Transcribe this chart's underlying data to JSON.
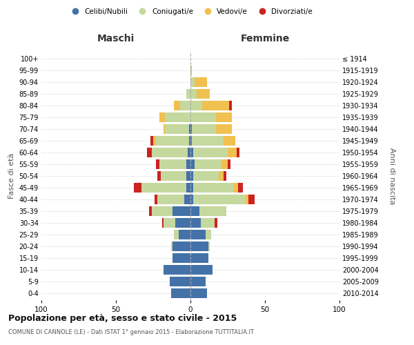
{
  "age_groups": [
    "0-4",
    "5-9",
    "10-14",
    "15-19",
    "20-24",
    "25-29",
    "30-34",
    "35-39",
    "40-44",
    "45-49",
    "50-54",
    "55-59",
    "60-64",
    "65-69",
    "70-74",
    "75-79",
    "80-84",
    "85-89",
    "90-94",
    "95-99",
    "100+"
  ],
  "birth_years": [
    "2010-2014",
    "2005-2009",
    "2000-2004",
    "1995-1999",
    "1990-1994",
    "1985-1989",
    "1980-1984",
    "1975-1979",
    "1970-1974",
    "1965-1969",
    "1960-1964",
    "1955-1959",
    "1950-1954",
    "1945-1949",
    "1940-1944",
    "1935-1939",
    "1930-1934",
    "1925-1929",
    "1920-1924",
    "1915-1919",
    "≤ 1914"
  ],
  "male": {
    "celibi": [
      13,
      14,
      18,
      12,
      12,
      8,
      10,
      12,
      4,
      3,
      3,
      3,
      2,
      1,
      1,
      0,
      0,
      0,
      0,
      0,
      0
    ],
    "coniugati": [
      0,
      0,
      0,
      0,
      1,
      3,
      8,
      14,
      18,
      30,
      17,
      18,
      24,
      22,
      16,
      17,
      7,
      3,
      0,
      0,
      0
    ],
    "vedovi": [
      0,
      0,
      0,
      0,
      0,
      0,
      0,
      0,
      0,
      0,
      0,
      0,
      0,
      2,
      1,
      4,
      4,
      0,
      0,
      0,
      0
    ],
    "divorziati": [
      0,
      0,
      0,
      0,
      0,
      0,
      1,
      2,
      2,
      5,
      2,
      2,
      3,
      2,
      0,
      0,
      0,
      0,
      0,
      0,
      0
    ]
  },
  "female": {
    "nubili": [
      11,
      10,
      15,
      12,
      12,
      10,
      7,
      6,
      2,
      2,
      2,
      3,
      2,
      1,
      1,
      0,
      0,
      0,
      0,
      0,
      0
    ],
    "coniugate": [
      0,
      0,
      0,
      0,
      1,
      4,
      9,
      18,
      35,
      27,
      17,
      18,
      23,
      21,
      16,
      17,
      8,
      4,
      3,
      0,
      0
    ],
    "vedove": [
      0,
      0,
      0,
      0,
      0,
      0,
      0,
      0,
      2,
      3,
      3,
      4,
      6,
      8,
      11,
      11,
      18,
      9,
      8,
      1,
      0
    ],
    "divorziate": [
      0,
      0,
      0,
      0,
      0,
      0,
      2,
      0,
      4,
      3,
      2,
      2,
      2,
      0,
      0,
      0,
      2,
      0,
      0,
      0,
      0
    ]
  },
  "colors": {
    "celibi": "#4472a8",
    "coniugati": "#c5d89e",
    "vedovi": "#f0c050",
    "divorziati": "#cc2222"
  },
  "xlim": 100,
  "title": "Popolazione per età, sesso e stato civile - 2015",
  "subtitle": "COMUNE DI CANNOLE (LE) - Dati ISTAT 1° gennaio 2015 - Elaborazione TUTTITALIA.IT",
  "xlabel_left": "Maschi",
  "xlabel_right": "Femmine",
  "ylabel_left": "Fasce di età",
  "ylabel_right": "Anni di nascita",
  "legend_labels": [
    "Celibi/Nubili",
    "Coniugati/e",
    "Vedovi/e",
    "Divorziati/e"
  ],
  "background_color": "#ffffff",
  "bar_height": 0.85
}
